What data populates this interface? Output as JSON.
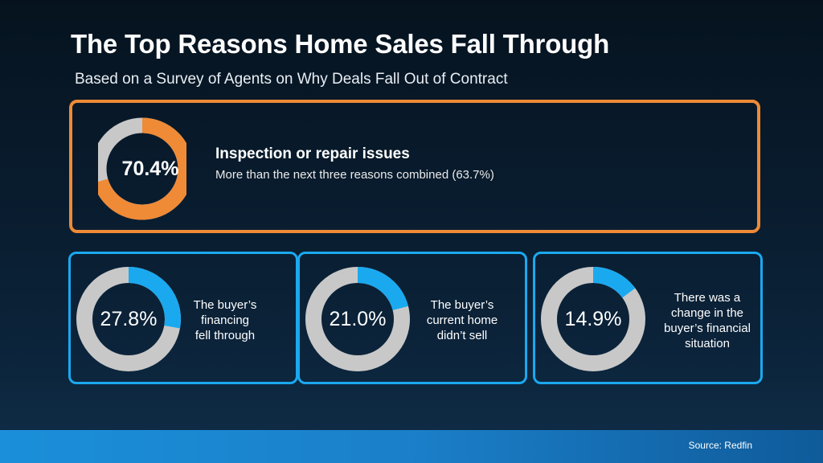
{
  "title": "The Top Reasons Home Sales Fall Through",
  "subtitle": "Based on a Survey of Agents on Why Deals Fall Out of Contract",
  "source": "Source: Redfin",
  "colors": {
    "featured": "#ef8a36",
    "accent": "#1aa9ef",
    "ring_background": "#c8c8c8"
  },
  "main": {
    "percent_label": "70.4%",
    "heading": "Inspection or repair issues",
    "description": "More than the next three reasons combined (63.7%)"
  },
  "cards": [
    {
      "percent_label": "27.8%",
      "lines": [
        "The buyer’s",
        "financing",
        "fell through"
      ]
    },
    {
      "percent_label": "21.0%",
      "lines": [
        "The buyer’s",
        "current home",
        "didn’t sell"
      ]
    },
    {
      "percent_label": "14.9%",
      "lines": [
        "There was a",
        "change in the",
        "buyer’s financial",
        "situation"
      ]
    }
  ],
  "chart_data": {
    "type": "pie",
    "categories": [
      "Inspection or repair issues",
      "The buyer’s financing fell through",
      "The buyer’s current home didn’t sell",
      "There was a change in the buyer’s financial situation"
    ],
    "values": [
      70.4,
      27.8,
      21.0,
      14.9
    ],
    "unit": "%"
  }
}
